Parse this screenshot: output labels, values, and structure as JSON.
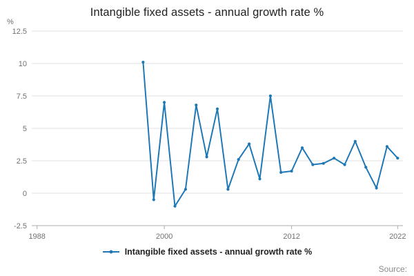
{
  "page": {
    "title": "Intangible fixed assets - annual growth rate %"
  },
  "chart_data": {
    "type": "line",
    "title": "Intangible fixed assets - annual growth rate %",
    "xlabel": "",
    "ylabel": "%",
    "legend": "Intangible fixed assets - annual growth rate %",
    "line_color": "#1e78b5",
    "grid": true,
    "legend_position": "bottom",
    "x": [
      1998,
      1999,
      2000,
      2001,
      2002,
      2003,
      2004,
      2005,
      2006,
      2007,
      2008,
      2009,
      2010,
      2011,
      2012,
      2013,
      2014,
      2015,
      2016,
      2017,
      2018,
      2019,
      2020,
      2021,
      2022
    ],
    "values": [
      10.1,
      -0.5,
      7.0,
      -1.0,
      0.3,
      6.8,
      2.8,
      6.5,
      0.3,
      2.6,
      3.8,
      1.1,
      7.5,
      1.6,
      1.7,
      3.5,
      2.2,
      2.3,
      2.7,
      2.2,
      4.0,
      2.0,
      0.4,
      3.6,
      2.7
    ],
    "yticks": [
      12.5,
      10,
      7.5,
      5,
      2.5,
      0,
      -2.5
    ],
    "xticks": [
      1988,
      2000,
      2012,
      2022
    ],
    "ylim": [
      -2.5,
      12.5
    ],
    "xlim": [
      1987.5,
      2022.5
    ]
  },
  "footer": {
    "source": "Source:"
  }
}
